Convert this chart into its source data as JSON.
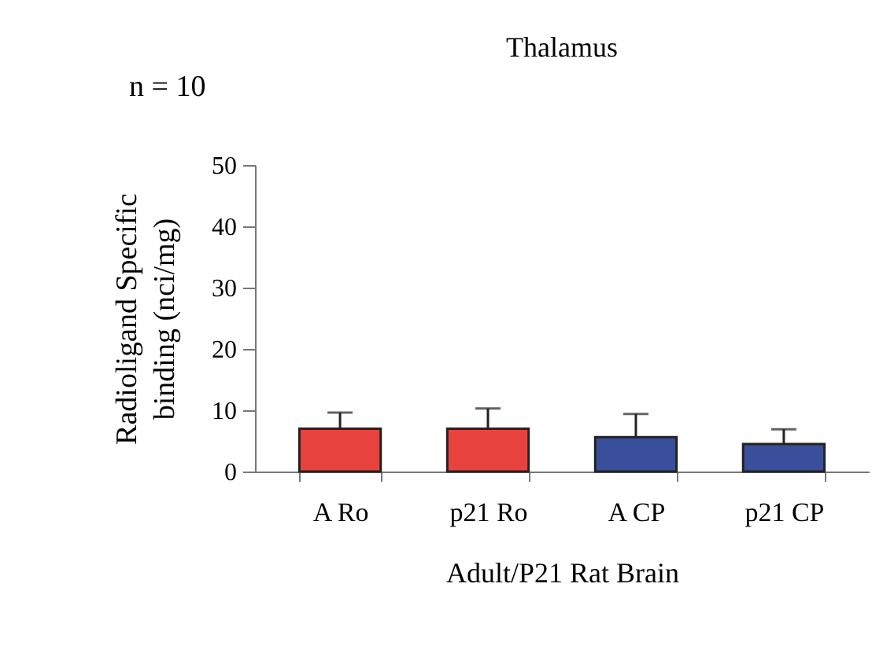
{
  "chart_data": {
    "type": "bar",
    "title": "Thalamus",
    "annotations": [
      "n = 10"
    ],
    "ylabel": "Radioligand Specific binding (nci/mg)",
    "xlabel": "Adult/P21 Rat Brain",
    "categories": [
      "A Ro",
      "p21 Ro",
      "A CP",
      "p21 CP"
    ],
    "values": [
      7.0,
      7.0,
      5.6,
      4.5
    ],
    "errors": [
      [
        7.0,
        9.6
      ],
      [
        7.0,
        10.3
      ],
      [
        5.6,
        9.4
      ],
      [
        4.5,
        6.9
      ]
    ],
    "colors": [
      "#e8423f",
      "#e8423f",
      "#3a4f9c",
      "#3a4f9c"
    ],
    "ylim": [
      0,
      50
    ],
    "yticks": [
      0,
      10,
      20,
      30,
      40,
      50
    ],
    "grid": false
  }
}
